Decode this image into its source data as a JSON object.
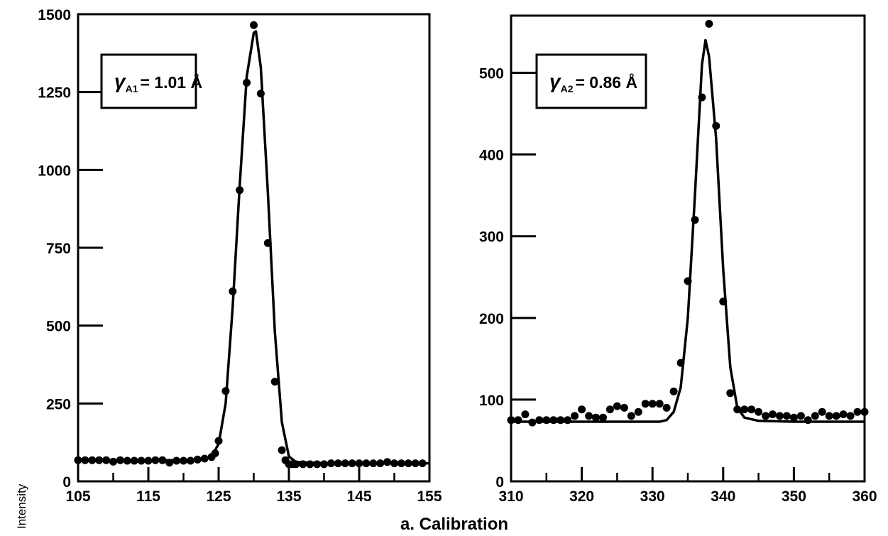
{
  "figure": {
    "caption": "a. Calibration",
    "ylabel": "Intensity"
  },
  "chart_data": [
    {
      "type": "scatter",
      "title": "",
      "xlabel": "",
      "ylabel": "Intensity",
      "xlim": [
        105,
        155
      ],
      "ylim": [
        0,
        1500
      ],
      "x_ticks": [
        105,
        115,
        125,
        135,
        145,
        155
      ],
      "y_ticks": [
        0,
        250,
        500,
        750,
        1000,
        1250,
        1500
      ],
      "annotation": {
        "prefix": "γ",
        "sub": "A1",
        "value": "= 1.01 Å"
      },
      "series": [
        {
          "kind": "points",
          "x": [
            105,
            106,
            107,
            108,
            109,
            110,
            111,
            112,
            113,
            114,
            115,
            116,
            117,
            118,
            119,
            120,
            121,
            122,
            123,
            124,
            124.5,
            125,
            126,
            127,
            128,
            129,
            130,
            131,
            132,
            133,
            134,
            134.5,
            135,
            135.5,
            136,
            137,
            138,
            139,
            140,
            141,
            142,
            143,
            144,
            145,
            146,
            147,
            148,
            149,
            150,
            151,
            152,
            153,
            154
          ],
          "y": [
            68,
            68,
            68,
            68,
            68,
            63,
            68,
            66,
            66,
            66,
            66,
            68,
            68,
            60,
            66,
            66,
            66,
            70,
            73,
            78,
            90,
            130,
            290,
            610,
            935,
            1280,
            1465,
            1245,
            765,
            320,
            100,
            68,
            55,
            55,
            55,
            55,
            55,
            55,
            55,
            58,
            58,
            58,
            58,
            58,
            58,
            58,
            58,
            62,
            58,
            58,
            58,
            58,
            58
          ]
        },
        {
          "kind": "line",
          "x": [
            105,
            110,
            115,
            120,
            123,
            124,
            125,
            126,
            127,
            128,
            129,
            130,
            130.3,
            131,
            132,
            133,
            134,
            135,
            136,
            140,
            145,
            150,
            155
          ],
          "y": [
            68,
            68,
            68,
            68,
            70,
            80,
            120,
            250,
            560,
            950,
            1300,
            1440,
            1445,
            1330,
            930,
            480,
            190,
            80,
            62,
            58,
            58,
            58,
            58
          ]
        }
      ]
    },
    {
      "type": "scatter",
      "title": "",
      "xlabel": "",
      "ylabel": "",
      "xlim": [
        310,
        360
      ],
      "ylim": [
        0,
        570
      ],
      "x_ticks": [
        310,
        320,
        330,
        340,
        350,
        360
      ],
      "y_ticks": [
        0,
        100,
        200,
        300,
        400,
        500
      ],
      "annotation": {
        "prefix": "γ",
        "sub": "A2",
        "value": "= 0.86 Å"
      },
      "series": [
        {
          "kind": "points",
          "x": [
            310,
            311,
            312,
            313,
            314,
            315,
            316,
            317,
            318,
            319,
            320,
            321,
            322,
            323,
            324,
            325,
            326,
            327,
            328,
            329,
            330,
            331,
            332,
            333,
            334,
            335,
            336,
            337,
            338,
            339,
            340,
            341,
            342,
            343,
            344,
            345,
            346,
            347,
            348,
            349,
            350,
            351,
            352,
            353,
            354,
            355,
            356,
            357,
            358,
            359,
            360
          ],
          "y": [
            75,
            75,
            82,
            72,
            75,
            75,
            75,
            75,
            75,
            80,
            88,
            80,
            78,
            78,
            88,
            92,
            90,
            80,
            85,
            95,
            95,
            95,
            90,
            110,
            145,
            245,
            320,
            470,
            560,
            435,
            220,
            108,
            88,
            88,
            88,
            85,
            80,
            82,
            80,
            80,
            78,
            80,
            75,
            80,
            85,
            80,
            80,
            82,
            80,
            85,
            85
          ],
          "tail_x": [
            359.5
          ],
          "tail_y": [
            85
          ]
        },
        {
          "kind": "line",
          "x": [
            310,
            325,
            331,
            332,
            333,
            334,
            335,
            336,
            337,
            337.5,
            338,
            339,
            340,
            341,
            342,
            343,
            345,
            350,
            360
          ],
          "y": [
            73,
            73,
            73,
            75,
            85,
            115,
            200,
            350,
            510,
            540,
            520,
            420,
            260,
            140,
            90,
            78,
            74,
            73,
            73
          ]
        }
      ]
    }
  ]
}
